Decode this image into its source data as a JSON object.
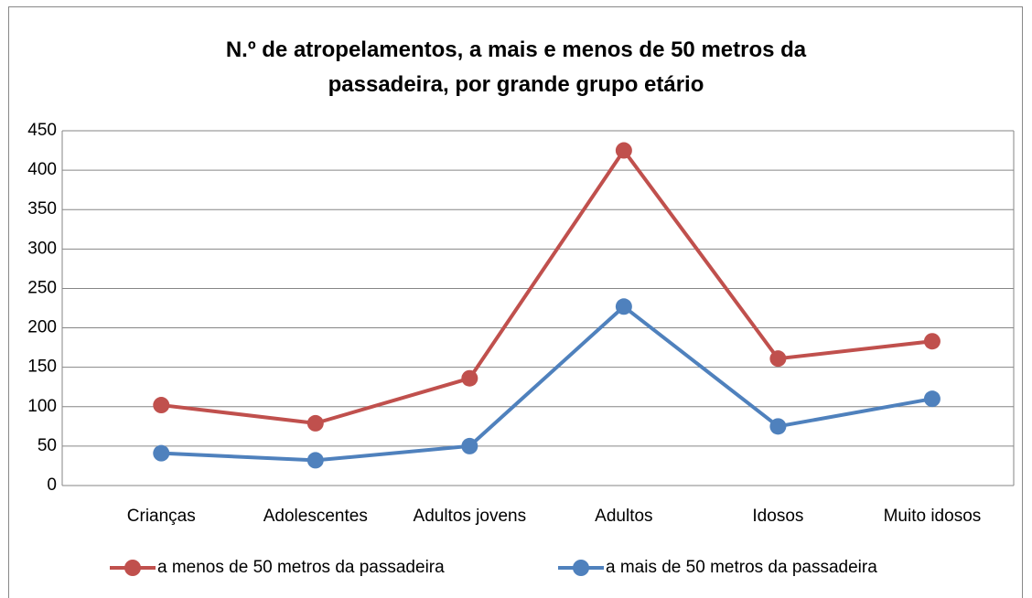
{
  "chart_data": {
    "type": "line",
    "title": "N.º de atropelamentos, a mais e menos de 50 metros da passadeira, por grande grupo etário",
    "categories": [
      "Crianças",
      "Adolescentes",
      "Adultos jovens",
      "Adultos",
      "Idosos",
      "Muito idosos"
    ],
    "series": [
      {
        "name": "a menos de 50 metros da passadeira",
        "color": "#c0504d",
        "values": [
          102,
          79,
          136,
          425,
          161,
          183
        ]
      },
      {
        "name": "a mais de 50 metros da passadeira",
        "color": "#4f81bd",
        "values": [
          41,
          32,
          50,
          227,
          75,
          110
        ]
      }
    ],
    "ylim": [
      0,
      450
    ],
    "yticks": [
      0,
      50,
      100,
      150,
      200,
      250,
      300,
      350,
      400,
      450
    ],
    "grid": true,
    "legend": "bottom"
  }
}
